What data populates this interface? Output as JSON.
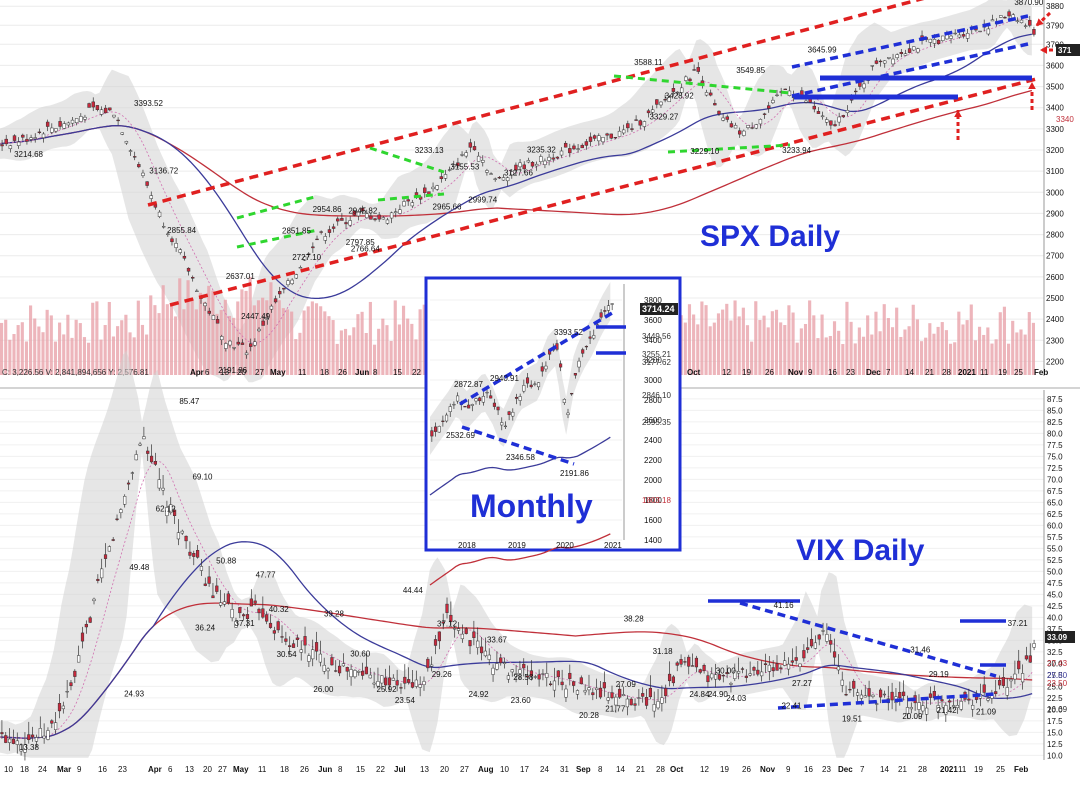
{
  "panels": {
    "spx_title": "SPX Daily",
    "vix_title": "VIX Daily",
    "monthly_title": "Monthly"
  },
  "colors": {
    "annotation_blue": "#1f2fd6",
    "channel_red": "#e02020",
    "wedge_green": "#2fd62f",
    "up_candle": "#ffffff",
    "down_candle": "#c8283c",
    "volume": "#e9a3aa",
    "ma_long": "#c0303a",
    "ma_mid": "#3b3b9a",
    "band_fill": "#d2d2d2"
  },
  "spx_info_line": "C: 3,226.56   V: 2,841,894,656   Y: 2,576.81",
  "chart_data": [
    {
      "name": "SPX Daily",
      "type": "candlestick",
      "ylim": [
        2150,
        3900
      ],
      "y_ticks": [
        "3880",
        "3790",
        "3700",
        "3600",
        "3500",
        "3400",
        "3300",
        "3200",
        "3100",
        "3000",
        "2900",
        "2800",
        "2700",
        "2600",
        "2500",
        "2400",
        "2300",
        "2200"
      ],
      "y_tick_values": [
        3880,
        3790,
        3700,
        3600,
        3500,
        3400,
        3300,
        3200,
        3100,
        3000,
        2900,
        2800,
        2700,
        2600,
        2500,
        2400,
        2300,
        2200
      ],
      "x_ticks": [
        "Apr",
        "6",
        "13",
        "20",
        "27",
        "May",
        "11",
        "18",
        "26",
        "Jun",
        "8",
        "15",
        "22",
        "Oct",
        "12",
        "19",
        "26",
        "Nov",
        "9",
        "16",
        "23",
        "Dec",
        "7",
        "14",
        "21",
        "28",
        "2021",
        "11",
        "19",
        "25",
        "Feb"
      ],
      "right_labels": [
        "3714.24",
        "371",
        "3340"
      ],
      "annotations": [
        {
          "label": "3214.68",
          "x": "2020-01-03",
          "y": 3214.68
        },
        {
          "label": "3393.52",
          "x": "2020-02-19",
          "y": 3393.52
        },
        {
          "label": "3136.72",
          "x": "2020-02-25",
          "y": 3136.72
        },
        {
          "label": "2855.84",
          "x": "2020-03-03",
          "y": 2855.84
        },
        {
          "label": "2637.01",
          "x": "2020-03-26",
          "y": 2637.01
        },
        {
          "label": "2191.86",
          "x": "2020-03-23",
          "y": 2191.86
        },
        {
          "label": "2447.49",
          "x": "2020-04-01",
          "y": 2447.49
        },
        {
          "label": "2851.85",
          "x": "2020-04-17",
          "y": 2851.85
        },
        {
          "label": "2727.10",
          "x": "2020-04-21",
          "y": 2727.1
        },
        {
          "label": "2954.86",
          "x": "2020-04-29",
          "y": 2954.86
        },
        {
          "label": "2797.85",
          "x": "2020-05-12",
          "y": 2797.85
        },
        {
          "label": "2945.82",
          "x": "2020-05-13",
          "y": 2945.82
        },
        {
          "label": "2766.64",
          "x": "2020-05-14",
          "y": 2766.64
        },
        {
          "label": "3233.13",
          "x": "2020-06-08",
          "y": 3233.13
        },
        {
          "label": "3155.53",
          "x": "2020-06-22",
          "y": 3155.53
        },
        {
          "label": "2965.66",
          "x": "2020-06-15",
          "y": 2965.66
        },
        {
          "label": "2999.74",
          "x": "2020-06-29",
          "y": 2999.74
        },
        {
          "label": "3127.66",
          "x": "2020-07-13",
          "y": 3127.66
        },
        {
          "label": "3235.32",
          "x": "2020-07-22",
          "y": 3235.32
        },
        {
          "label": "3588.11",
          "x": "2020-09-02",
          "y": 3588.11
        },
        {
          "label": "3428.92",
          "x": "2020-09-14",
          "y": 3428.92
        },
        {
          "label": "3329.27",
          "x": "2020-09-08",
          "y": 3329.27
        },
        {
          "label": "3229.10",
          "x": "2020-09-24",
          "y": 3229.1
        },
        {
          "label": "3549.85",
          "x": "2020-10-12",
          "y": 3549.85
        },
        {
          "label": "3233.94",
          "x": "2020-10-30",
          "y": 3233.94
        },
        {
          "label": "3645.99",
          "x": "2020-11-09",
          "y": 3645.99
        },
        {
          "label": "3870.90",
          "x": "2021-01-29",
          "y": 3870.9
        }
      ]
    },
    {
      "name": "Monthly",
      "type": "candlestick",
      "ylim": [
        1400,
        3900
      ],
      "y_ticks": [
        "3800",
        "3600",
        "3400",
        "3200",
        "3000",
        "2800",
        "2600",
        "2400",
        "2200",
        "2000",
        "1800",
        "1600",
        "1400"
      ],
      "y_tick_values": [
        3800,
        3600,
        3400,
        3200,
        3000,
        2800,
        2600,
        2400,
        2200,
        2000,
        1800,
        1600,
        1400
      ],
      "x_ticks": [
        "2018",
        "2019",
        "2020",
        "2021"
      ],
      "right_labels": [
        "3714.24",
        "3449.56",
        "3255.21",
        "3177.62",
        "2846.10",
        "2595.35",
        "1803.18"
      ],
      "annotations": [
        {
          "label": "3393.52",
          "x": "2020-02",
          "y": 3393.52
        },
        {
          "label": "2872.87",
          "x": "2018-01",
          "y": 2872.87
        },
        {
          "label": "2940.91",
          "x": "2018-09",
          "y": 2940.91
        },
        {
          "label": "2532.69",
          "x": "2018-02",
          "y": 2532.69
        },
        {
          "label": "2346.58",
          "x": "2018-12",
          "y": 2346.58
        },
        {
          "label": "2191.86",
          "x": "2020-03",
          "y": 2191.86
        }
      ]
    },
    {
      "name": "VIX Daily",
      "type": "candlestick",
      "ylim": [
        9,
        89
      ],
      "y_ticks": [
        "87.5",
        "85.0",
        "82.5",
        "80.0",
        "77.5",
        "75.0",
        "72.5",
        "70.0",
        "67.5",
        "65.0",
        "62.5",
        "60.0",
        "57.5",
        "55.0",
        "52.5",
        "50.0",
        "47.5",
        "45.0",
        "42.5",
        "40.0",
        "37.5",
        "35.0",
        "32.5",
        "30.0",
        "27.5",
        "25.0",
        "22.5",
        "20.0",
        "17.5",
        "15.0",
        "12.5",
        "10.0"
      ],
      "y_tick_values": [
        87.5,
        85.0,
        82.5,
        80.0,
        77.5,
        75.0,
        72.5,
        70.0,
        67.5,
        65.0,
        62.5,
        60.0,
        57.5,
        55.0,
        52.5,
        50.0,
        47.5,
        45.0,
        42.5,
        40.0,
        37.5,
        35.0,
        32.5,
        30.0,
        27.5,
        25.0,
        22.5,
        20.0,
        17.5,
        15.0,
        12.5,
        10.0
      ],
      "x_ticks": [
        "10",
        "18",
        "24",
        "Mar",
        "9",
        "16",
        "23",
        "Apr",
        "6",
        "13",
        "20",
        "27",
        "May",
        "11",
        "18",
        "26",
        "Jun",
        "8",
        "15",
        "22",
        "Jul",
        "13",
        "20",
        "27",
        "Aug",
        "10",
        "17",
        "24",
        "31",
        "Sep",
        "8",
        "14",
        "21",
        "28",
        "Oct",
        "12",
        "19",
        "26",
        "Nov",
        "9",
        "16",
        "23",
        "Dec",
        "7",
        "14",
        "21",
        "28",
        "2021",
        "11",
        "19",
        "25",
        "Feb"
      ],
      "right_labels": [
        "33.09",
        "27.43",
        "25.80",
        "23.50",
        "16.69"
      ],
      "annotations": [
        {
          "label": "13.38",
          "x": "2020-01-17",
          "y": 13.38
        },
        {
          "label": "24.93",
          "x": "2020-02-26",
          "y": 24.93
        },
        {
          "label": "49.48",
          "x": "2020-02-28",
          "y": 49.48
        },
        {
          "label": "62.12",
          "x": "2020-03-09",
          "y": 62.12
        },
        {
          "label": "85.47",
          "x": "2020-03-18",
          "y": 85.47
        },
        {
          "label": "69.10",
          "x": "2020-03-23",
          "y": 69.1
        },
        {
          "label": "50.88",
          "x": "2020-04-01",
          "y": 50.88
        },
        {
          "label": "36.24",
          "x": "2020-03-24",
          "y": 36.24
        },
        {
          "label": "37.31",
          "x": "2020-04-08",
          "y": 37.31
        },
        {
          "label": "47.77",
          "x": "2020-04-16",
          "y": 47.77
        },
        {
          "label": "40.32",
          "x": "2020-04-21",
          "y": 40.32
        },
        {
          "label": "30.54",
          "x": "2020-04-24",
          "y": 30.54
        },
        {
          "label": "39.28",
          "x": "2020-05-12",
          "y": 39.28
        },
        {
          "label": "26.00",
          "x": "2020-05-08",
          "y": 26.0
        },
        {
          "label": "30.60",
          "x": "2020-05-22",
          "y": 30.6
        },
        {
          "label": "25.92",
          "x": "2020-06-01",
          "y": 25.92
        },
        {
          "label": "23.54",
          "x": "2020-06-08",
          "y": 23.54
        },
        {
          "label": "44.44",
          "x": "2020-06-11",
          "y": 44.44
        },
        {
          "label": "37.12",
          "x": "2020-06-24",
          "y": 37.12
        },
        {
          "label": "29.26",
          "x": "2020-06-22",
          "y": 29.26
        },
        {
          "label": "24.92",
          "x": "2020-07-06",
          "y": 24.92
        },
        {
          "label": "33.67",
          "x": "2020-07-13",
          "y": 33.67
        },
        {
          "label": "28.58",
          "x": "2020-07-23",
          "y": 28.58
        },
        {
          "label": "23.60",
          "x": "2020-07-22",
          "y": 23.6
        },
        {
          "label": "20.28",
          "x": "2020-08-17",
          "y": 20.28
        },
        {
          "label": "21.77",
          "x": "2020-08-27",
          "y": 21.77
        },
        {
          "label": "27.09",
          "x": "2020-08-31",
          "y": 27.09
        },
        {
          "label": "38.28",
          "x": "2020-09-03",
          "y": 38.28
        },
        {
          "label": "31.18",
          "x": "2020-09-14",
          "y": 31.18
        },
        {
          "label": "24.84",
          "x": "2020-09-28",
          "y": 24.84
        },
        {
          "label": "24.90",
          "x": "2020-10-05",
          "y": 24.9
        },
        {
          "label": "30.00",
          "x": "2020-10-08",
          "y": 30.0
        },
        {
          "label": "24.03",
          "x": "2020-10-12",
          "y": 24.03
        },
        {
          "label": "41.16",
          "x": "2020-10-30",
          "y": 41.16
        },
        {
          "label": "27.27",
          "x": "2020-11-06",
          "y": 27.27
        },
        {
          "label": "22.41",
          "x": "2020-11-02",
          "y": 22.41
        },
        {
          "label": "19.51",
          "x": "2020-11-25",
          "y": 19.51
        },
        {
          "label": "31.46",
          "x": "2020-12-21",
          "y": 31.46
        },
        {
          "label": "29.19",
          "x": "2020-12-28",
          "y": 29.19
        },
        {
          "label": "20.09",
          "x": "2020-12-18",
          "y": 20.09
        },
        {
          "label": "21.42",
          "x": "2020-12-31",
          "y": 21.42
        },
        {
          "label": "21.09",
          "x": "2021-01-15",
          "y": 21.09
        },
        {
          "label": "37.21",
          "x": "2021-01-27",
          "y": 37.21
        }
      ]
    }
  ]
}
